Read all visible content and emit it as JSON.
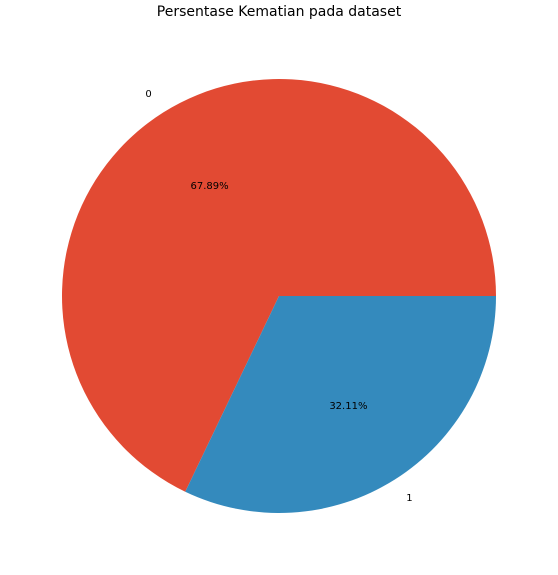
{
  "chart_data": {
    "type": "pie",
    "title": "Persentase Kematian pada dataset",
    "categories": [
      "0",
      "1"
    ],
    "values": [
      67.89,
      32.11
    ],
    "value_labels": [
      "67.89%",
      "32.11%"
    ],
    "colors": [
      "#e24a33",
      "#348abd"
    ],
    "start_angle": "0 (counter-clockwise from 3 o'clock)",
    "legend": "none",
    "grid": false
  }
}
